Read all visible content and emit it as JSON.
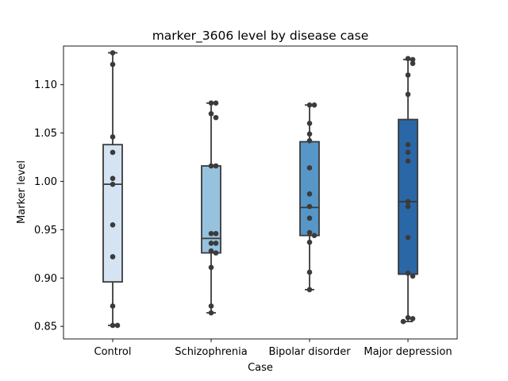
{
  "chart_data": {
    "type": "box",
    "title": "marker_3606 level by disease case",
    "xlabel": "Case",
    "ylabel": "Marker level",
    "ylim": [
      0.837,
      1.14
    ],
    "yticks": [
      "0.85",
      "0.90",
      "0.95",
      "1.00",
      "1.05",
      "1.10"
    ],
    "categories": [
      "Control",
      "Schizophrenia",
      "Bipolar disorder",
      "Major depression"
    ],
    "grid": false,
    "legend": "none",
    "boxes": [
      {
        "category": "Control",
        "color": "#d5e4f3",
        "whisker_low": 0.851,
        "q1": 0.896,
        "median": 0.997,
        "q3": 1.038,
        "whisker_high": 1.133,
        "points": [
          1.133,
          1.121,
          1.046,
          1.03,
          1.003,
          0.997,
          0.955,
          0.922,
          0.871,
          0.851,
          0.851
        ]
      },
      {
        "category": "Schizophrenia",
        "color": "#97c2de",
        "whisker_low": 0.864,
        "q1": 0.926,
        "median": 0.941,
        "q3": 1.016,
        "whisker_high": 1.081,
        "points": [
          1.081,
          1.081,
          1.07,
          1.066,
          1.016,
          1.016,
          0.946,
          0.946,
          0.936,
          0.936,
          0.928,
          0.926,
          0.911,
          0.871,
          0.864
        ]
      },
      {
        "category": "Bipolar disorder",
        "color": "#5697c8",
        "whisker_low": 0.888,
        "q1": 0.944,
        "median": 0.973,
        "q3": 1.041,
        "whisker_high": 1.079,
        "points": [
          1.079,
          1.079,
          1.06,
          1.049,
          1.042,
          1.014,
          0.987,
          0.974,
          0.962,
          0.947,
          0.944,
          0.937,
          0.906,
          0.888
        ]
      },
      {
        "category": "Major depression",
        "color": "#2a67a6",
        "whisker_low": 0.855,
        "q1": 0.904,
        "median": 0.979,
        "q3": 1.064,
        "whisker_high": 1.126,
        "points": [
          1.127,
          1.126,
          1.122,
          1.11,
          1.09,
          1.038,
          1.03,
          1.021,
          0.979,
          0.974,
          0.942,
          0.905,
          0.902,
          0.859,
          0.858,
          0.855
        ]
      }
    ]
  }
}
